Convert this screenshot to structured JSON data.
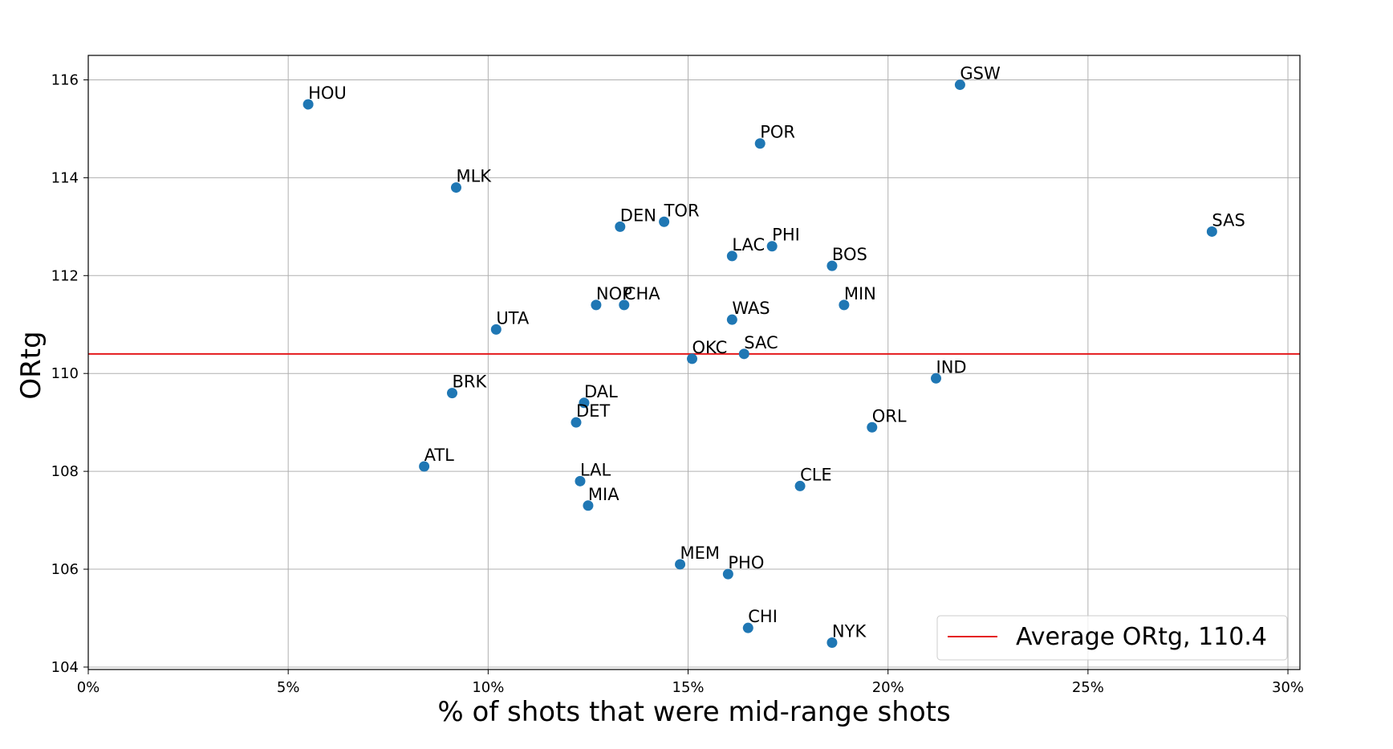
{
  "chart_data": {
    "type": "scatter",
    "title": "",
    "xlabel": "% of shots that were mid-range shots",
    "ylabel": "ORtg",
    "xlim": [
      0,
      30.3
    ],
    "ylim": [
      103.95,
      116.5
    ],
    "x_ticks": [
      0,
      5,
      10,
      15,
      20,
      25,
      30
    ],
    "x_tick_labels": [
      "0%",
      "5%",
      "10%",
      "15%",
      "20%",
      "25%",
      "30%"
    ],
    "y_ticks": [
      104,
      106,
      108,
      110,
      112,
      114,
      116
    ],
    "y_tick_labels": [
      "104",
      "106",
      "108",
      "110",
      "112",
      "114",
      "116"
    ],
    "grid": true,
    "point_color": "#1f77b4",
    "line_color": "#e41a1c",
    "legend_position": "lower-right",
    "reference_line": {
      "y": 110.4,
      "label": "Average ORtg, 110.4"
    },
    "points": [
      {
        "label": "HOU",
        "x": 5.5,
        "y": 115.5
      },
      {
        "label": "GSW",
        "x": 21.8,
        "y": 115.9
      },
      {
        "label": "POR",
        "x": 16.8,
        "y": 114.7
      },
      {
        "label": "MLK",
        "x": 9.2,
        "y": 113.8
      },
      {
        "label": "DEN",
        "x": 13.3,
        "y": 113.0
      },
      {
        "label": "TOR",
        "x": 14.4,
        "y": 113.1
      },
      {
        "label": "SAS",
        "x": 28.1,
        "y": 112.9
      },
      {
        "label": "PHI",
        "x": 17.1,
        "y": 112.6
      },
      {
        "label": "LAC",
        "x": 16.1,
        "y": 112.4
      },
      {
        "label": "BOS",
        "x": 18.6,
        "y": 112.2
      },
      {
        "label": "NOP",
        "x": 12.7,
        "y": 111.4
      },
      {
        "label": "CHA",
        "x": 13.4,
        "y": 111.4
      },
      {
        "label": "MIN",
        "x": 18.9,
        "y": 111.4
      },
      {
        "label": "WAS",
        "x": 16.1,
        "y": 111.1
      },
      {
        "label": "UTA",
        "x": 10.2,
        "y": 110.9
      },
      {
        "label": "SAC",
        "x": 16.4,
        "y": 110.4
      },
      {
        "label": "OKC",
        "x": 15.1,
        "y": 110.3
      },
      {
        "label": "IND",
        "x": 21.2,
        "y": 109.9
      },
      {
        "label": "BRK",
        "x": 9.1,
        "y": 109.6
      },
      {
        "label": "DAL",
        "x": 12.4,
        "y": 109.4
      },
      {
        "label": "DET",
        "x": 12.2,
        "y": 109.0
      },
      {
        "label": "ORL",
        "x": 19.6,
        "y": 108.9
      },
      {
        "label": "ATL",
        "x": 8.4,
        "y": 108.1
      },
      {
        "label": "LAL",
        "x": 12.3,
        "y": 107.8
      },
      {
        "label": "CLE",
        "x": 17.8,
        "y": 107.7
      },
      {
        "label": "MIA",
        "x": 12.5,
        "y": 107.3
      },
      {
        "label": "MEM",
        "x": 14.8,
        "y": 106.1
      },
      {
        "label": "PHO",
        "x": 16.0,
        "y": 105.9
      },
      {
        "label": "CHI",
        "x": 16.5,
        "y": 104.8
      },
      {
        "label": "NYK",
        "x": 18.6,
        "y": 104.5
      }
    ]
  }
}
